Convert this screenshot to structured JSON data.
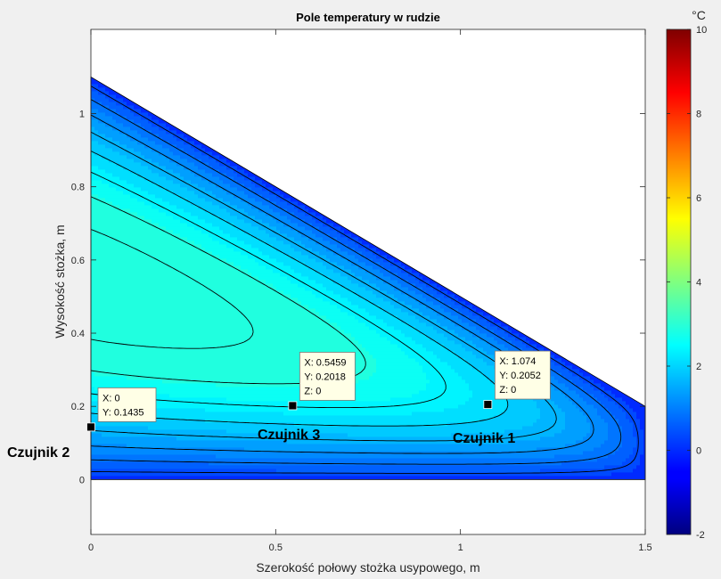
{
  "chart_data": {
    "type": "heatmap",
    "title": "Pole temperatury w rudzie",
    "xlabel": "Szerokość połowy stożka usypowego, m",
    "ylabel": "Wysokość stożka, m",
    "xlim": [
      0,
      1.5
    ],
    "ylim": [
      -0.15,
      1.23
    ],
    "x_ticks": [
      "0",
      "0.5",
      "1",
      "1.5"
    ],
    "y_ticks": [
      "0",
      "0.2",
      "0.4",
      "0.6",
      "0.8",
      "1"
    ],
    "colorbar": {
      "unit": "°C",
      "range": [
        -2,
        10
      ],
      "ticks": [
        "-2",
        "0",
        "2",
        "4",
        "6",
        "8",
        "10"
      ],
      "colormap": "jet"
    },
    "domain_polygon": [
      [
        0,
        0
      ],
      [
        1.5,
        0
      ],
      [
        1.5,
        0.2
      ],
      [
        0,
        1.1
      ]
    ],
    "field": {
      "max_value": 3.5,
      "max_at": [
        0.05,
        0.43
      ],
      "boundary_value": 0
    },
    "contour_levels": [
      0.25,
      0.5,
      0.75,
      1.0,
      1.25,
      1.5,
      1.75,
      2.0,
      2.25,
      2.5,
      2.75
    ],
    "datatips": [
      {
        "lines": [
          "X: 0",
          "Y: 0.1435"
        ],
        "x": 0,
        "y": 0.1435
      },
      {
        "lines": [
          "X: 0.5459",
          "Y: 0.2018",
          "Z: 0"
        ],
        "x": 0.5459,
        "y": 0.2018
      },
      {
        "lines": [
          "X: 1.074",
          "Y: 0.2052",
          "Z: 0"
        ],
        "x": 1.074,
        "y": 0.2052
      }
    ],
    "sensors": [
      {
        "label": "Czujnik 2",
        "color": "#1f2f80"
      },
      {
        "label": "Czujnik 3",
        "color": "#1f8a1f"
      },
      {
        "label": "Czujnik 1",
        "color": "#d01c1c"
      }
    ]
  }
}
